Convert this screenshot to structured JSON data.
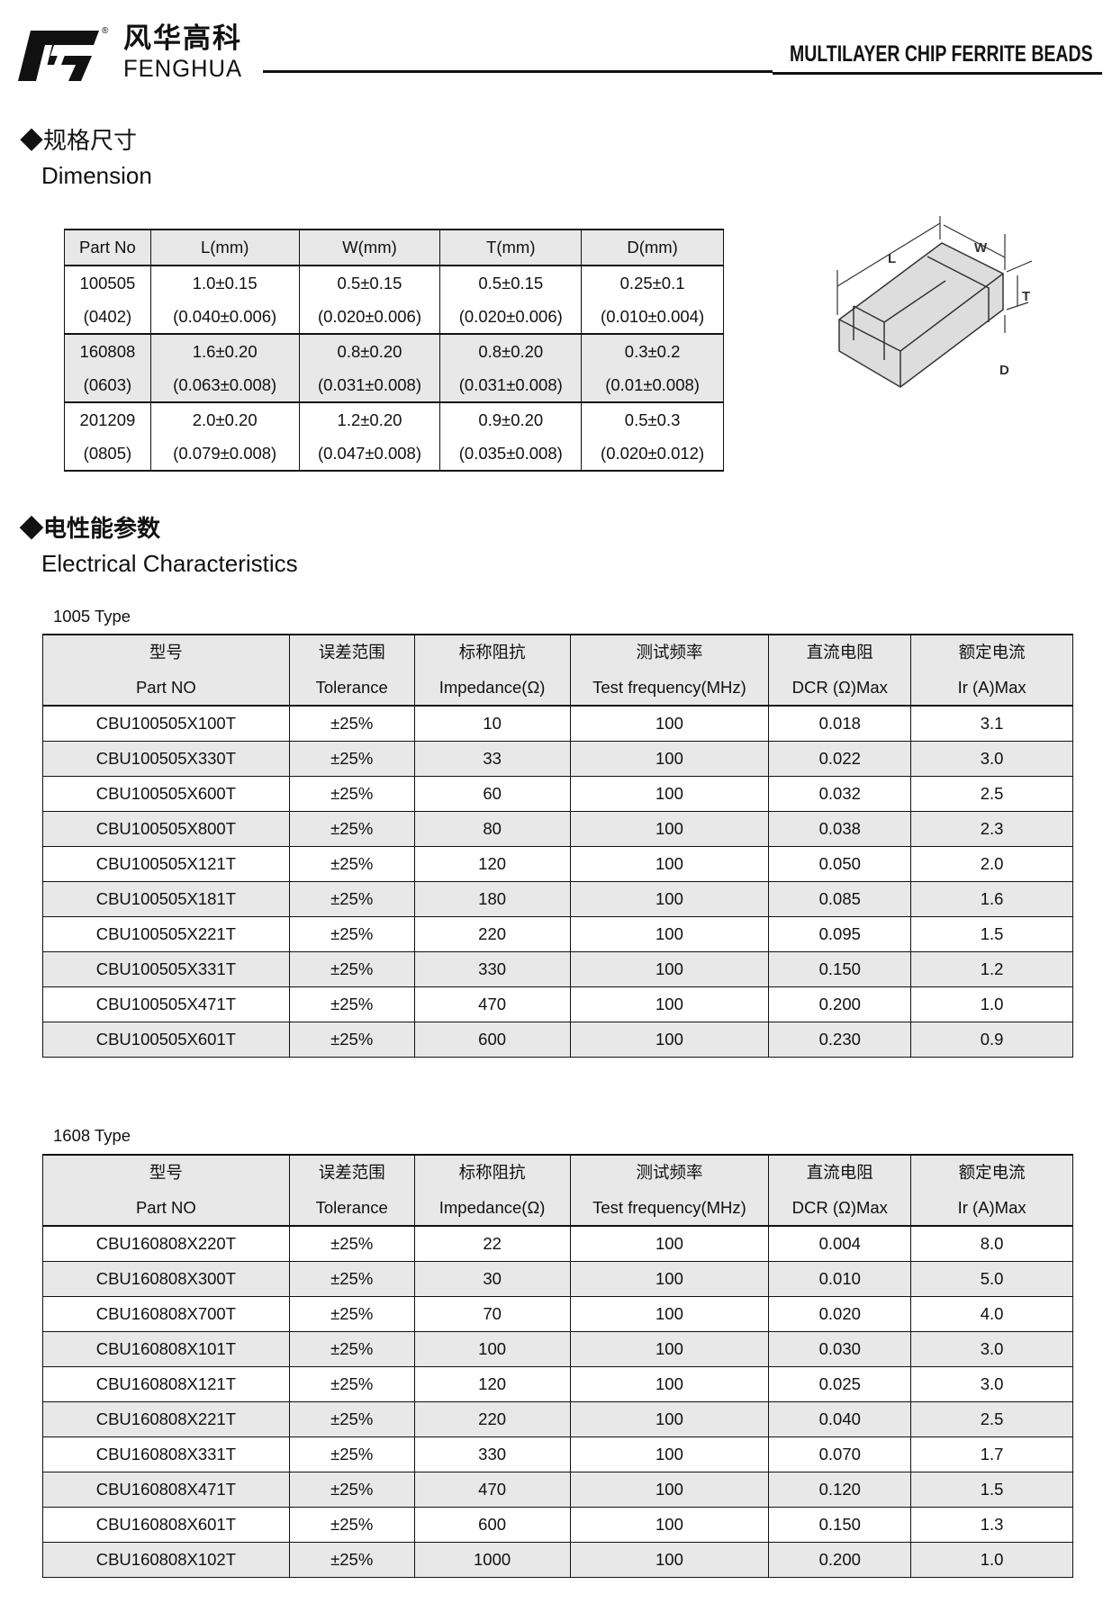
{
  "header": {
    "logo_cn": "风华高科",
    "logo_en": "FENGHUA",
    "registered": "®",
    "title": "MULTILAYER CHIP FERRITE BEADS"
  },
  "dimension": {
    "heading_cn": "◆规格尺寸",
    "heading_en": "Dimension",
    "columns": [
      "Part No",
      "L(mm)",
      "W(mm)",
      "T(mm)",
      "D(mm)"
    ],
    "rows": [
      {
        "part": "100505",
        "code": "(0402)",
        "L": [
          "1.0±0.15",
          "(0.040±0.006)"
        ],
        "W": [
          "0.5±0.15",
          "(0.020±0.006)"
        ],
        "T": [
          "0.5±0.15",
          "(0.020±0.006)"
        ],
        "D": [
          "0.25±0.1",
          "(0.010±0.004)"
        ]
      },
      {
        "part": "160808",
        "code": "(0603)",
        "L": [
          "1.6±0.20",
          "(0.063±0.008)"
        ],
        "W": [
          "0.8±0.20",
          "(0.031±0.008)"
        ],
        "T": [
          "0.8±0.20",
          "(0.031±0.008)"
        ],
        "D": [
          "0.3±0.2",
          "(0.01±0.008)"
        ]
      },
      {
        "part": "201209",
        "code": "(0805)",
        "L": [
          "2.0±0.20",
          "(0.079±0.008)"
        ],
        "W": [
          "1.2±0.20",
          "(0.047±0.008)"
        ],
        "T": [
          "0.9±0.20",
          "(0.035±0.008)"
        ],
        "D": [
          "0.5±0.3",
          "(0.020±0.012)"
        ]
      }
    ],
    "diagram_labels": {
      "L": "L",
      "W": "W",
      "T": "T",
      "D": "D"
    }
  },
  "electrical": {
    "heading_cn": "◆电性能参数",
    "heading_en": "Electrical Characteristics",
    "columns_cn": [
      "型号",
      "误差范围",
      "标称阻抗",
      "测试频率",
      "直流电阻",
      "额定电流"
    ],
    "columns_en": [
      "Part NO",
      "Tolerance",
      "Impedance(Ω)",
      "Test frequency(MHz)",
      "DCR (Ω)Max",
      "Ir (A)Max"
    ],
    "tables": [
      {
        "label": "1005 Type",
        "rows": [
          [
            "CBU100505X100T",
            "±25%",
            "10",
            "100",
            "0.018",
            "3.1"
          ],
          [
            "CBU100505X330T",
            "±25%",
            "33",
            "100",
            "0.022",
            "3.0"
          ],
          [
            "CBU100505X600T",
            "±25%",
            "60",
            "100",
            "0.032",
            "2.5"
          ],
          [
            "CBU100505X800T",
            "±25%",
            "80",
            "100",
            "0.038",
            "2.3"
          ],
          [
            "CBU100505X121T",
            "±25%",
            "120",
            "100",
            "0.050",
            "2.0"
          ],
          [
            "CBU100505X181T",
            "±25%",
            "180",
            "100",
            "0.085",
            "1.6"
          ],
          [
            "CBU100505X221T",
            "±25%",
            "220",
            "100",
            "0.095",
            "1.5"
          ],
          [
            "CBU100505X331T",
            "±25%",
            "330",
            "100",
            "0.150",
            "1.2"
          ],
          [
            "CBU100505X471T",
            "±25%",
            "470",
            "100",
            "0.200",
            "1.0"
          ],
          [
            "CBU100505X601T",
            "±25%",
            "600",
            "100",
            "0.230",
            "0.9"
          ]
        ]
      },
      {
        "label": "1608 Type",
        "rows": [
          [
            "CBU160808X220T",
            "±25%",
            "22",
            "100",
            "0.004",
            "8.0"
          ],
          [
            "CBU160808X300T",
            "±25%",
            "30",
            "100",
            "0.010",
            "5.0"
          ],
          [
            "CBU160808X700T",
            "±25%",
            "70",
            "100",
            "0.020",
            "4.0"
          ],
          [
            "CBU160808X101T",
            "±25%",
            "100",
            "100",
            "0.030",
            "3.0"
          ],
          [
            "CBU160808X121T",
            "±25%",
            "120",
            "100",
            "0.025",
            "3.0"
          ],
          [
            "CBU160808X221T",
            "±25%",
            "220",
            "100",
            "0.040",
            "2.5"
          ],
          [
            "CBU160808X331T",
            "±25%",
            "330",
            "100",
            "0.070",
            "1.7"
          ],
          [
            "CBU160808X471T",
            "±25%",
            "470",
            "100",
            "0.120",
            "1.5"
          ],
          [
            "CBU160808X601T",
            "±25%",
            "600",
            "100",
            "0.150",
            "1.3"
          ],
          [
            "CBU160808X102T",
            "±25%",
            "1000",
            "100",
            "0.200",
            "1.0"
          ]
        ]
      }
    ]
  }
}
